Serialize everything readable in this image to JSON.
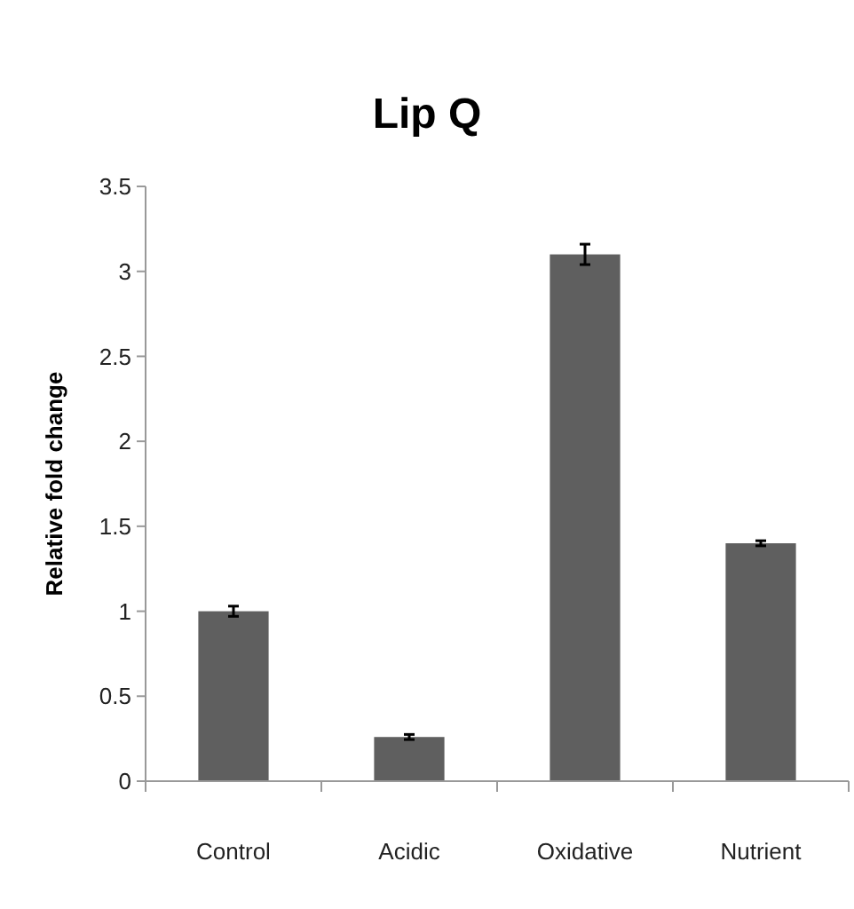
{
  "chart_data": {
    "type": "bar",
    "title": "Lip Q",
    "ylabel": "Relative fold change",
    "categories": [
      "Control",
      "Acidic",
      "Oxidative",
      "Nutrient"
    ],
    "values": [
      1.0,
      0.26,
      3.1,
      1.4
    ],
    "errors": [
      0.03,
      0.015,
      0.06,
      0.015
    ],
    "color": "#5f5f5f",
    "ylim": [
      0,
      3.5
    ],
    "yticks": [
      0,
      0.5,
      1,
      1.5,
      2,
      2.5,
      3,
      3.5
    ],
    "grid": false
  }
}
